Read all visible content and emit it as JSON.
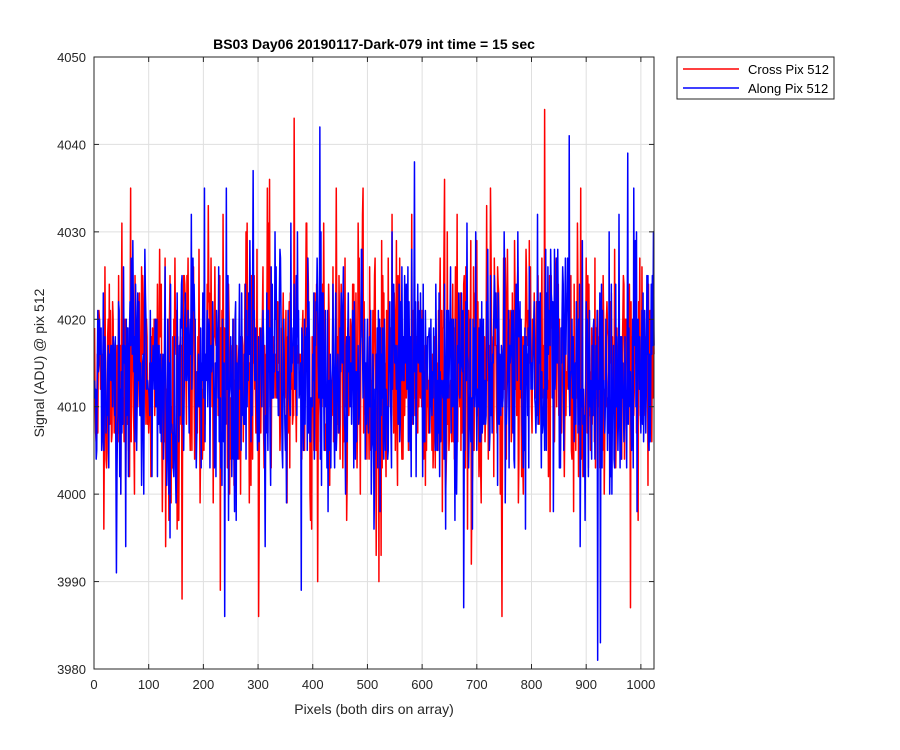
{
  "chart_data": {
    "type": "line",
    "title": "BS03 Day06 20190117-Dark-079 int time = 15 sec",
    "xlabel": "Pixels (both dirs on array)",
    "ylabel": "Signal (ADU) @ pix 512",
    "xlim": [
      0,
      1024
    ],
    "ylim": [
      3980,
      4050
    ],
    "xticks": [
      0,
      100,
      200,
      300,
      400,
      500,
      600,
      700,
      800,
      900,
      1000
    ],
    "yticks": [
      3980,
      3990,
      4000,
      4010,
      4020,
      4030,
      4040,
      4050
    ],
    "grid": true,
    "legend_position": "outside-top-right",
    "noise_model": {
      "count": 1024,
      "mean": 4014,
      "std": 7.5
    },
    "series": [
      {
        "name": "Cross Pix 512",
        "color": "#ff0000",
        "seed": 1337,
        "peaks": [
          {
            "x": 365,
            "y": 4043
          },
          {
            "x": 823,
            "y": 4044
          },
          {
            "x": 66,
            "y": 4035
          },
          {
            "x": 320,
            "y": 4036
          },
          {
            "x": 640,
            "y": 4036
          },
          {
            "x": 160,
            "y": 3988
          },
          {
            "x": 300,
            "y": 3986
          },
          {
            "x": 980,
            "y": 3987
          },
          {
            "x": 230,
            "y": 3989
          },
          {
            "x": 408,
            "y": 3990
          },
          {
            "x": 520,
            "y": 3990
          }
        ]
      },
      {
        "name": "Along Pix 512",
        "color": "#0000ff",
        "seed": 4242,
        "peaks": [
          {
            "x": 412,
            "y": 4042
          },
          {
            "x": 868,
            "y": 4041
          },
          {
            "x": 585,
            "y": 4038
          },
          {
            "x": 975,
            "y": 4039
          },
          {
            "x": 290,
            "y": 4037
          },
          {
            "x": 920,
            "y": 3981
          },
          {
            "x": 925,
            "y": 3983
          },
          {
            "x": 675,
            "y": 3987
          },
          {
            "x": 238,
            "y": 3986
          },
          {
            "x": 378,
            "y": 3989
          },
          {
            "x": 40,
            "y": 3991
          }
        ]
      }
    ]
  }
}
